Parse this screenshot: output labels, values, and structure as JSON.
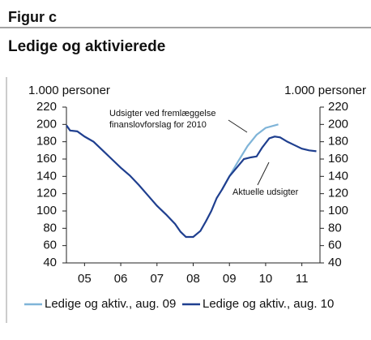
{
  "header": "Figur c",
  "chart_data": {
    "type": "line",
    "title": "Ledige og aktivierede",
    "ylabel": "1.000 personer",
    "y2label": "1.000 personer",
    "xlim": [
      2005,
      2012
    ],
    "xticks": [
      {
        "value": 2005.5,
        "label": "05"
      },
      {
        "value": 2006.5,
        "label": "06"
      },
      {
        "value": 2007.5,
        "label": "07"
      },
      {
        "value": 2008.5,
        "label": "08"
      },
      {
        "value": 2009.5,
        "label": "09"
      },
      {
        "value": 2010.5,
        "label": "10"
      },
      {
        "value": 2011.5,
        "label": "11"
      }
    ],
    "ylim": [
      40,
      220
    ],
    "yticks": [
      40,
      60,
      80,
      100,
      120,
      140,
      160,
      180,
      200,
      220
    ],
    "y2lim": [
      40,
      220
    ],
    "y2ticks": [
      40,
      60,
      80,
      100,
      120,
      140,
      160,
      180,
      200,
      220
    ],
    "annotations": [
      "Udsigter ved fremlæggelse",
      "finanslovforslag for 2010",
      "Aktuelle udsigter"
    ],
    "series": [
      {
        "name": "Ledige og aktiv., aug. 09",
        "color": "#7fb4d8",
        "x": [
          2009.3,
          2009.5,
          2009.75,
          2010.0,
          2010.25,
          2010.5,
          2010.85
        ],
        "values": [
          125,
          140,
          158,
          175,
          188,
          196,
          200
        ]
      },
      {
        "name": "Ledige og aktiv., aug. 10",
        "color": "#1f3f8f",
        "x": [
          2005.0,
          2005.1,
          2005.3,
          2005.5,
          2005.75,
          2006.0,
          2006.25,
          2006.5,
          2006.75,
          2007.0,
          2007.25,
          2007.5,
          2007.75,
          2008.0,
          2008.15,
          2008.3,
          2008.5,
          2008.7,
          2008.85,
          2009.0,
          2009.15,
          2009.3,
          2009.5,
          2009.7,
          2009.9,
          2010.1,
          2010.25,
          2010.4,
          2010.6,
          2010.75,
          2010.9,
          2011.1,
          2011.3,
          2011.5,
          2011.7,
          2011.9
        ],
        "values": [
          199,
          193,
          192,
          186,
          180,
          170,
          160,
          150,
          141,
          130,
          118,
          106,
          96,
          85,
          76,
          70,
          70,
          77,
          88,
          100,
          115,
          125,
          140,
          150,
          160,
          162,
          163,
          173,
          184,
          186,
          185,
          180,
          176,
          172,
          170,
          169
        ]
      }
    ]
  }
}
